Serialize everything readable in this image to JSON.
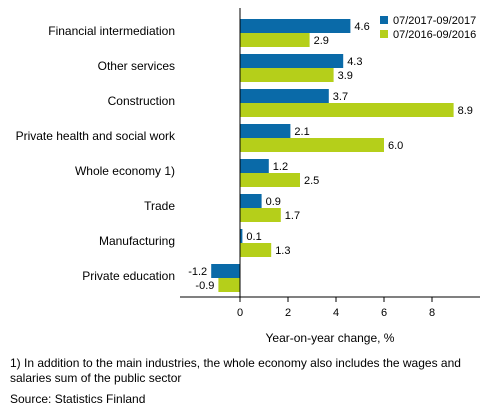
{
  "chart_data": {
    "type": "bar",
    "orientation": "horizontal",
    "categories": [
      "Financial intermediation",
      "Other services",
      "Construction",
      "Private health and social work",
      "Whole economy 1)",
      "Trade",
      "Manufacturing",
      "Private education"
    ],
    "series": [
      {
        "name": "07/2017-09/2017",
        "values": [
          4.6,
          4.3,
          3.7,
          2.1,
          1.2,
          0.9,
          0.1,
          -1.2
        ],
        "labels": [
          "4.6",
          "4.3",
          "3.7",
          "2.1",
          "1.2",
          "0.9",
          "0.1",
          "-1.2"
        ],
        "color": "#0a6aa8"
      },
      {
        "name": "07/2016-09/2016",
        "values": [
          2.9,
          3.9,
          8.9,
          6.0,
          2.5,
          1.7,
          1.3,
          -0.9
        ],
        "labels": [
          "2.9",
          "3.9",
          "8.9",
          "6.0",
          "2.5",
          "1.7",
          "1.3",
          "-0.9"
        ],
        "color": "#b5cf1a"
      }
    ],
    "xlabel": "Year-on-year change, %",
    "xlim": [
      -2,
      10
    ],
    "xticks": [
      0,
      2,
      4,
      6,
      8
    ],
    "xtick_labels": [
      "0",
      "2",
      "4",
      "6",
      "8"
    ],
    "legend_position": "top-right",
    "grid": false
  },
  "footnote": "1) In addition to the main industries, the whole economy also includes the wages and salaries sum of the public sector",
  "source": "Source: Statistics Finland"
}
